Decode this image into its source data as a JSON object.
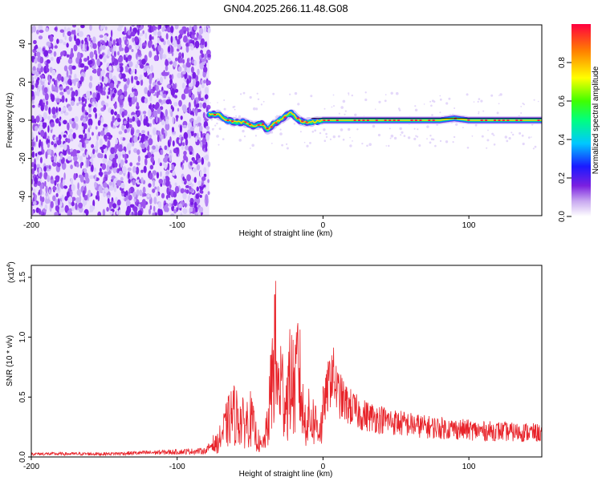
{
  "title": "GN04.2025.266.11.48.G08",
  "chart_data": [
    {
      "type": "heatmap",
      "xlabel": "Height of straight line (km)",
      "ylabel": "Frequency (Hz)",
      "xlim": [
        -200,
        150
      ],
      "ylim": [
        -50,
        50
      ],
      "xticks": [
        -200,
        -100,
        0,
        100
      ],
      "yticks": [
        -40,
        -20,
        0,
        20,
        40
      ],
      "colorbar": {
        "label": "Normalized spectral amplitude",
        "range": [
          0,
          1
        ],
        "ticks": [
          "0.0",
          "0.2",
          "0.4",
          "0.6",
          "0.8"
        ]
      },
      "noise_region_x": [
        -200,
        -78
      ],
      "ridge": {
        "x": [
          -78,
          -72,
          -66,
          -60,
          -54,
          -48,
          -42,
          -38,
          -34,
          -30,
          -26,
          -22,
          -18,
          -14,
          -8,
          0,
          20,
          40,
          60,
          80,
          90,
          100,
          120,
          150
        ],
        "freq": [
          3,
          3,
          0,
          -1,
          -1,
          -3,
          -2,
          -5,
          -2,
          0,
          2,
          4,
          1,
          -1,
          -1,
          0,
          0,
          0,
          0,
          0,
          1,
          0,
          0,
          0
        ]
      },
      "grid": false
    },
    {
      "type": "line",
      "xlabel": "Height of straight line (km)",
      "ylabel": "SNR (10 * v/v)",
      "y_multiplier": "(x10",
      "y_multiplier_exp": "4",
      "y_multiplier_close": ")",
      "xlim": [
        -200,
        150
      ],
      "ylim": [
        0,
        1.6
      ],
      "xticks": [
        -200,
        -100,
        0,
        100
      ],
      "yticks": [
        "0.0",
        "0.5",
        "1.0",
        "1.5"
      ],
      "series": [
        {
          "color": "#e8242a",
          "envelope": {
            "x": [
              -200,
              -150,
              -100,
              -80,
              -72,
              -66,
              -62,
              -58,
              -54,
              -50,
              -46,
              -42,
              -38,
              -35,
              -33,
              -31,
              -29,
              -27,
              -25,
              -22,
              -19,
              -17,
              -15,
              -13,
              -10,
              -6,
              -2,
              2,
              6,
              10,
              15,
              20,
              25,
              30,
              40,
              50,
              60,
              70,
              80,
              90,
              100,
              110,
              120,
              130,
              140,
              150
            ],
            "y": [
              0.03,
              0.03,
              0.05,
              0.06,
              0.2,
              0.45,
              0.6,
              0.55,
              0.45,
              0.55,
              0.3,
              0.12,
              0.4,
              1.05,
              1.6,
              0.9,
              1.05,
              0.85,
              0.8,
              1.1,
              0.9,
              1.35,
              0.85,
              0.5,
              0.55,
              0.5,
              0.4,
              0.55,
              0.8,
              0.6,
              0.5,
              0.45,
              0.4,
              0.38,
              0.35,
              0.32,
              0.3,
              0.28,
              0.27,
              0.26,
              0.25,
              0.24,
              0.24,
              0.23,
              0.23,
              0.22
            ]
          }
        }
      ],
      "grid": false
    }
  ]
}
